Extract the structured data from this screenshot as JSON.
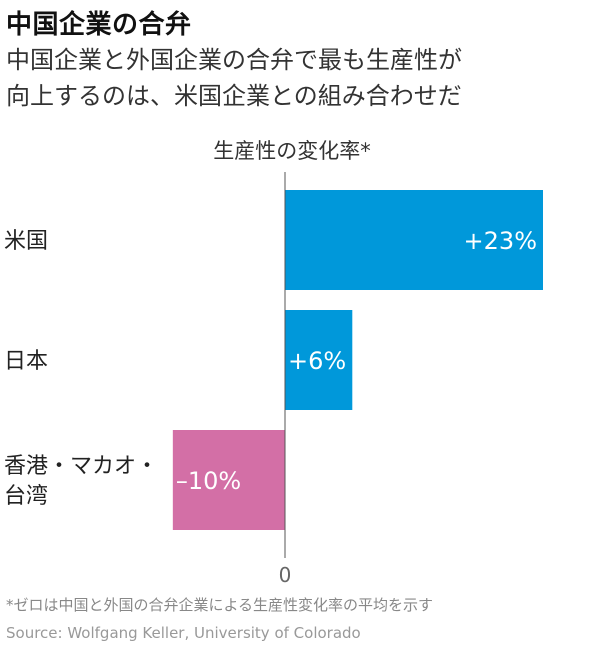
{
  "header": {
    "title": "中国企業の合弁",
    "subtitle_line1": "中国企業と外国企業の合弁で最も生産性が",
    "subtitle_line2": "向上するのは、米国企業との組み合わせだ"
  },
  "chart_data": {
    "type": "bar",
    "orientation": "horizontal",
    "axis_title": "生産性の変化率*",
    "categories": [
      [
        "米国"
      ],
      [
        "日本"
      ],
      [
        "香港・マカオ・",
        "台湾"
      ]
    ],
    "values": [
      23,
      6,
      -10
    ],
    "value_labels": [
      "+23%",
      "+6%",
      "–10%"
    ],
    "zero_tick_label": "0",
    "xlim": [
      -10,
      23
    ],
    "colors": {
      "positive": "#0098da",
      "negative": "#d36fa6"
    },
    "grid": false,
    "legend": "none"
  },
  "footer": {
    "footnote": "*ゼロは中国と外国の合弁企業による生産性変化率の平均を示す",
    "source": "Source: Wolfgang Keller, University of Colorado"
  }
}
